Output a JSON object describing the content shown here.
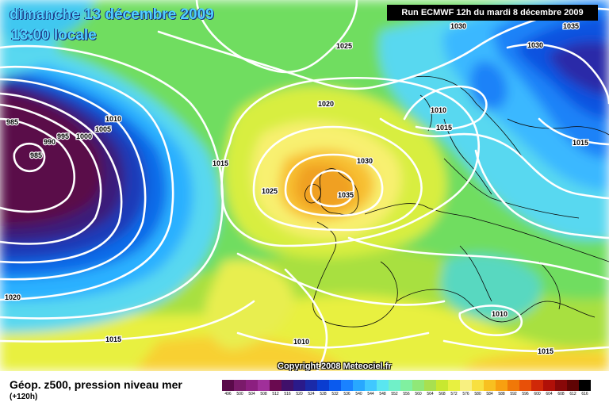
{
  "header": {
    "title_line1": "dimanche 13 décembre 2009",
    "title_line2": "13:00 locale",
    "run_label": "Run ECMWF 12h du mardi 8 décembre 2009"
  },
  "copyright": "Copyright 2008 Meteociel.fr",
  "footer": {
    "variable_label": "Géop. z500, pression niveau mer",
    "lead_time": "(+120h)"
  },
  "legend": {
    "values": [
      "496",
      "500",
      "504",
      "508",
      "512",
      "516",
      "520",
      "524",
      "528",
      "532",
      "536",
      "540",
      "544",
      "548",
      "552",
      "556",
      "560",
      "564",
      "568",
      "572",
      "576",
      "580",
      "584",
      "588",
      "592",
      "596",
      "600",
      "604",
      "608",
      "612",
      "616"
    ],
    "colors": [
      "#5a0a4a",
      "#7a1a6a",
      "#8c1f80",
      "#a0309a",
      "#6a0a50",
      "#40106a",
      "#2a1a8a",
      "#1a2aa8",
      "#0a3cd0",
      "#0a5aee",
      "#1a82ff",
      "#28a8ff",
      "#40c8ff",
      "#5ae6f0",
      "#70f0c8",
      "#80f0a0",
      "#90e878",
      "#a8e050",
      "#c8e830",
      "#e8f040",
      "#f8f080",
      "#f8e040",
      "#f8c020",
      "#f8a010",
      "#f07808",
      "#e85008",
      "#d02808",
      "#b01008",
      "#880808",
      "#600404",
      "#000000"
    ]
  },
  "map": {
    "isobar_labels": [
      {
        "text": "985",
        "label": "L-985-west"
      },
      {
        "text": "985",
        "label": "L-985-center"
      },
      {
        "text": "990",
        "label": "990"
      },
      {
        "text": "995",
        "label": "995"
      },
      {
        "text": "1000",
        "label": "1000"
      },
      {
        "text": "1005",
        "label": "1005-a"
      },
      {
        "text": "1010",
        "label": "1010-a"
      },
      {
        "text": "1015",
        "label": "1015-a"
      },
      {
        "text": "1020",
        "label": "1020-west"
      },
      {
        "text": "1025",
        "label": "1025-center"
      },
      {
        "text": "1030",
        "label": "1030-uk"
      },
      {
        "text": "1035",
        "label": "1035-uk"
      },
      {
        "text": "1025",
        "label": "1025-top"
      },
      {
        "text": "1020",
        "label": "1020-top"
      },
      {
        "text": "1010",
        "label": "1010-low"
      },
      {
        "text": "1015",
        "label": "1015-low"
      },
      {
        "text": "1030",
        "label": "1030-topright"
      },
      {
        "text": "1030",
        "label": "1030-right"
      },
      {
        "text": "1035",
        "label": "1035-corner"
      },
      {
        "text": "1015",
        "label": "1015-east"
      },
      {
        "text": "1010",
        "label": "1010-spain"
      },
      {
        "text": "1015",
        "label": "1015-bottom"
      },
      {
        "text": "1010",
        "label": "1010-med"
      },
      {
        "text": "1015",
        "label": "1015-se"
      }
    ]
  }
}
